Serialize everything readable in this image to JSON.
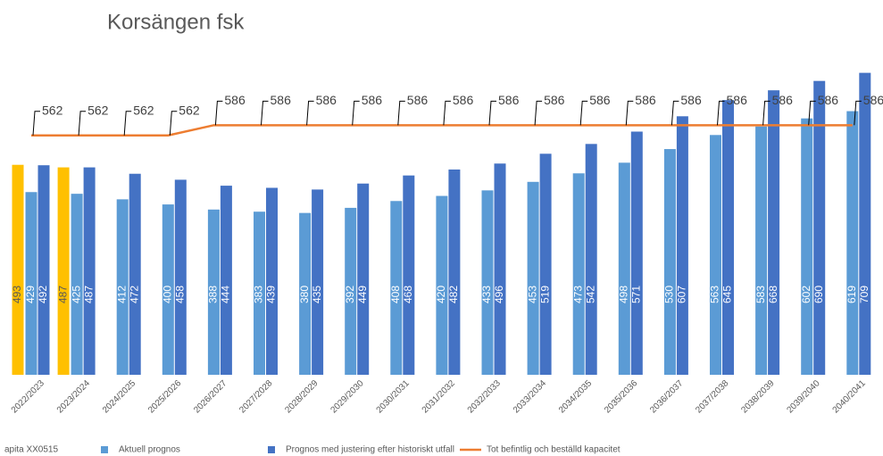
{
  "chart_data": {
    "type": "bar",
    "title": "Korsängen fsk",
    "categories": [
      "2022/2023",
      "2023/2024",
      "2024/2025",
      "2025/2026",
      "2026/2027",
      "2027/2028",
      "2028/2029",
      "2029/2030",
      "2030/2031",
      "2031/2032",
      "2032/2033",
      "2033/2034",
      "2034/2035",
      "2035/2036",
      "2036/2037",
      "2037/2038",
      "2038/2039",
      "2039/2040",
      "2040/2041"
    ],
    "series": [
      {
        "name": "apita XX0515",
        "color": "#ffc000",
        "values": [
          493,
          487,
          null,
          null,
          null,
          null,
          null,
          null,
          null,
          null,
          null,
          null,
          null,
          null,
          null,
          null,
          null,
          null,
          null
        ]
      },
      {
        "name": "Aktuell prognos",
        "color": "#5b9bd5",
        "values": [
          429,
          425,
          412,
          400,
          388,
          383,
          380,
          392,
          408,
          420,
          433,
          453,
          473,
          498,
          530,
          563,
          583,
          602,
          619
        ]
      },
      {
        "name": "Prognos med justering efter historiskt utfall",
        "color": "#4472c4",
        "values": [
          492,
          487,
          472,
          458,
          444,
          439,
          435,
          449,
          468,
          482,
          496,
          519,
          542,
          571,
          607,
          645,
          668,
          690,
          709
        ]
      },
      {
        "name": "Tot befintlig och beställd kapacitet",
        "color": "#ed7d31",
        "type": "line",
        "values": [
          562,
          562,
          562,
          562,
          586,
          586,
          586,
          586,
          586,
          586,
          586,
          586,
          586,
          586,
          586,
          586,
          586,
          586,
          586
        ]
      }
    ],
    "ylim": [
      0,
      880
    ]
  }
}
